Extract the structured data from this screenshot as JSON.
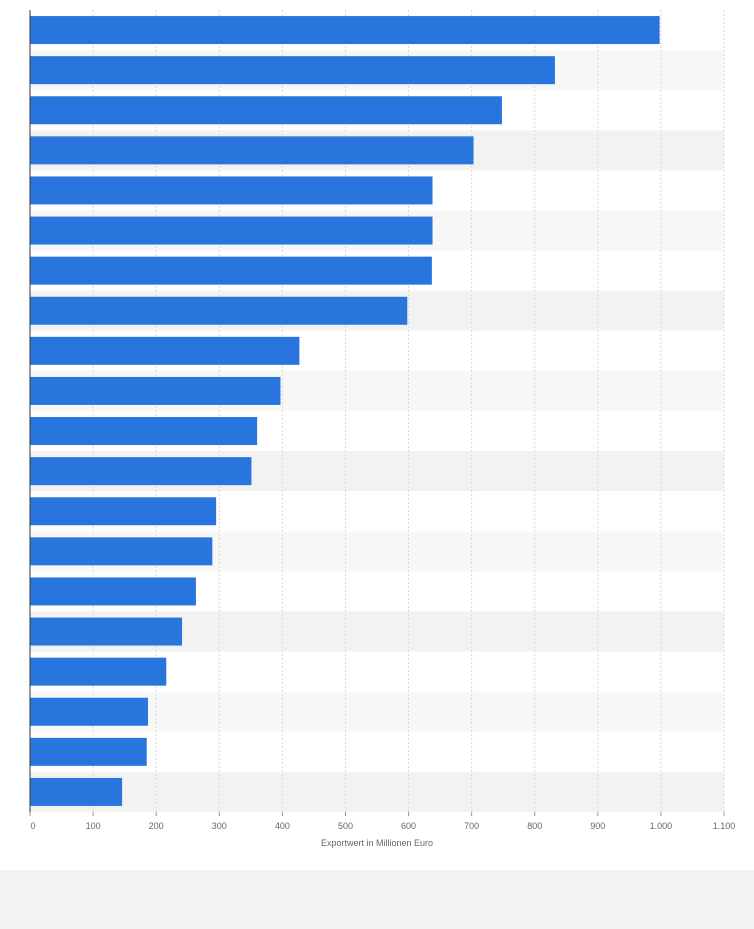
{
  "chart_data": {
    "type": "bar",
    "orientation": "horizontal",
    "values": [
      998,
      832,
      748,
      703,
      638,
      638,
      637,
      598,
      427,
      397,
      360,
      351,
      295,
      289,
      263,
      241,
      216,
      187,
      185,
      146
    ],
    "xlabel": "Exportwert in Millionen Euro",
    "xlim": [
      0,
      1100
    ],
    "x_ticks": [
      0,
      100,
      200,
      300,
      400,
      500,
      600,
      700,
      800,
      900,
      1000,
      1100
    ],
    "x_tick_labels": [
      "0",
      "100",
      "200",
      "300",
      "400",
      "500",
      "600",
      "700",
      "800",
      "900",
      "1.000",
      "1.100"
    ],
    "grid": true,
    "bar_color": "#2876dd"
  }
}
